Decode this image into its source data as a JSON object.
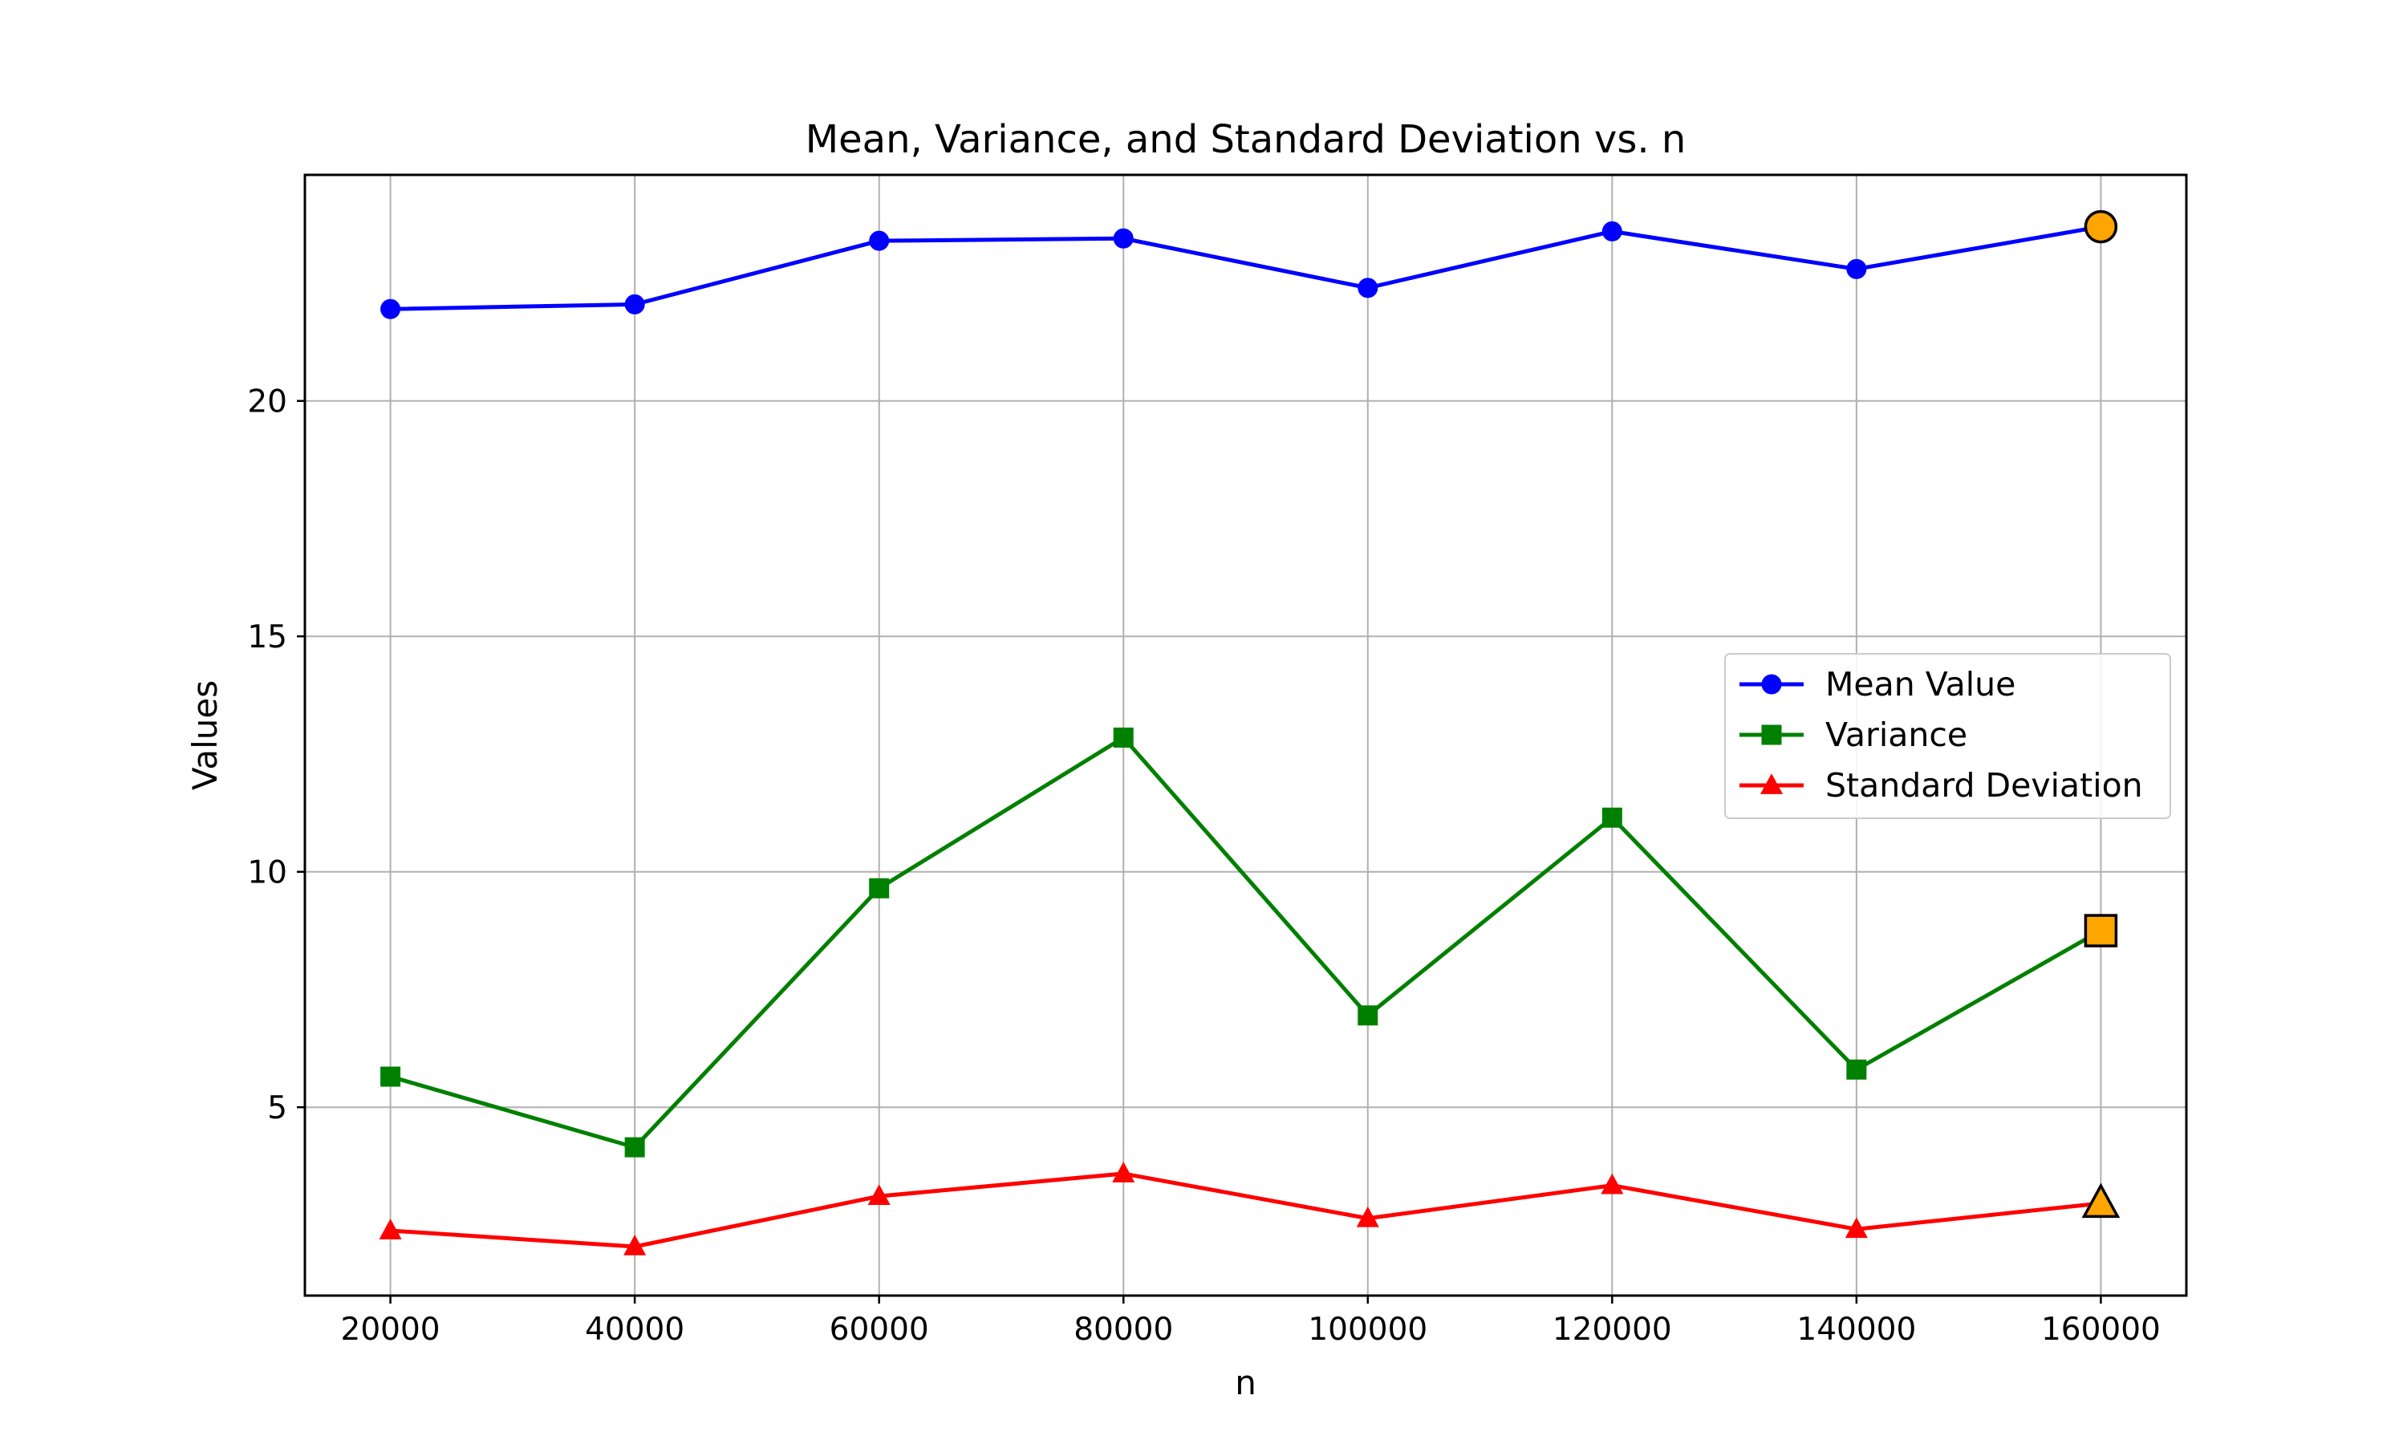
{
  "chart_data": {
    "type": "line",
    "title": "Mean, Variance, and Standard Deviation vs. n",
    "xlabel": "n",
    "ylabel": "Values",
    "x": [
      20000,
      40000,
      60000,
      80000,
      100000,
      120000,
      140000,
      160000
    ],
    "xticks": [
      "20000",
      "40000",
      "60000",
      "80000",
      "100000",
      "120000",
      "140000",
      "160000"
    ],
    "yticks": [
      5,
      10,
      15,
      20
    ],
    "xlim": [
      13000,
      167000
    ],
    "ylim": [
      1.0,
      24.8
    ],
    "grid": true,
    "legend_position": "center-right",
    "series": [
      {
        "name": "Mean Value",
        "color": "#0000ff",
        "marker": "circle",
        "values": [
          21.95,
          22.05,
          23.4,
          23.45,
          22.4,
          23.6,
          22.8,
          23.7
        ]
      },
      {
        "name": "Variance",
        "color": "#008000",
        "marker": "square",
        "values": [
          5.65,
          4.15,
          9.65,
          12.85,
          6.95,
          11.15,
          5.8,
          8.75
        ]
      },
      {
        "name": "Standard Deviation",
        "color": "#ff0000",
        "marker": "triangle",
        "values": [
          2.38,
          2.04,
          3.11,
          3.59,
          2.64,
          3.34,
          2.41,
          2.96
        ]
      }
    ],
    "highlight": {
      "color": "#ffa500",
      "index": 7
    }
  }
}
